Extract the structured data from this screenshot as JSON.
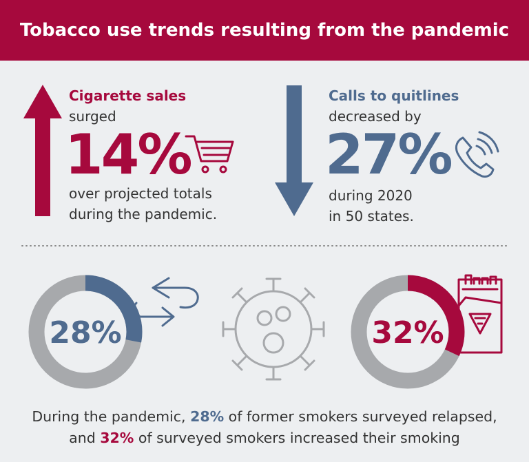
{
  "title": "Tobacco use trends resulting from the pandemic",
  "cigarette": {
    "heading": "Cigarette sales",
    "verb": "surged",
    "stat": "14%",
    "caption_lines": [
      "over projected totals",
      "during the pandemic."
    ]
  },
  "quitlines": {
    "heading": "Calls to quitlines",
    "verb": "decreased by",
    "stat": "27%",
    "caption_lines": [
      "during 2020",
      "in 50 states."
    ]
  },
  "donuts": [
    {
      "value": 28,
      "value_label": "28%",
      "color": "#4f6b8f"
    },
    {
      "value": 32,
      "value_label": "32%",
      "color": "#a6093d"
    }
  ],
  "footer": {
    "lines": [
      [
        {
          "text": "During the pandemic, ",
          "bold": false
        },
        {
          "text": "28%",
          "bold": true,
          "color": "#4f6b8f"
        },
        {
          "text": " of former smokers surveyed relapsed,",
          "bold": false
        }
      ],
      [
        {
          "text": "and ",
          "bold": false
        },
        {
          "text": "32%",
          "bold": true,
          "color": "#a6093d"
        },
        {
          "text": " of surveyed smokers increased their smoking",
          "bold": false
        }
      ]
    ]
  }
}
